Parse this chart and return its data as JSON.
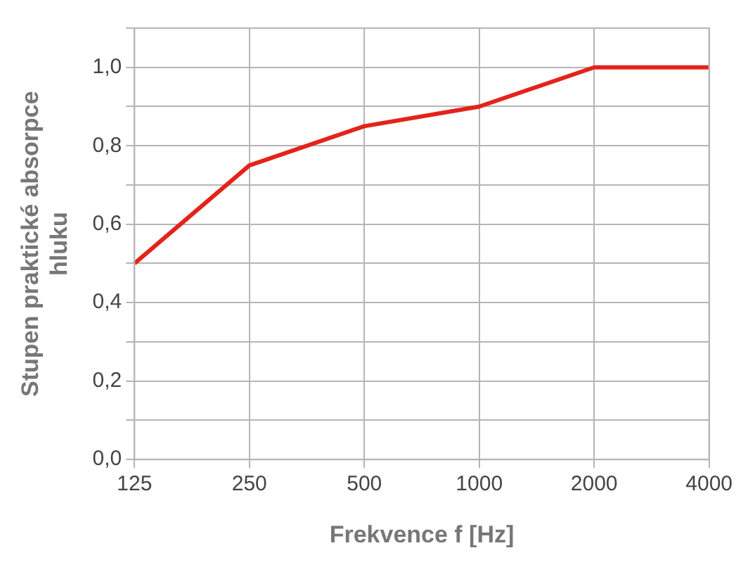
{
  "chart_data": {
    "type": "line",
    "xlabel": "Frekvence f [Hz]",
    "ylabel": "Stupen praktické absorpce hluku",
    "categories": [
      "125",
      "250",
      "500",
      "1000",
      "2000",
      "4000"
    ],
    "series": [
      {
        "color": "#e3241b",
        "values": [
          0.5,
          0.75,
          0.85,
          0.9,
          1.0,
          1.0
        ]
      }
    ],
    "ylim": [
      0,
      1.1
    ],
    "yticks": [
      {
        "value": 0,
        "label": "0,0"
      },
      {
        "value": 0.1,
        "label": null
      },
      {
        "value": 0.2,
        "label": "0,2"
      },
      {
        "value": 0.3,
        "label": null
      },
      {
        "value": 0.4,
        "label": "0,4"
      },
      {
        "value": 0.5,
        "label": null
      },
      {
        "value": 0.6,
        "label": "0,6"
      },
      {
        "value": 0.7,
        "label": null
      },
      {
        "value": 0.8,
        "label": "0,8"
      },
      {
        "value": 0.9,
        "label": null
      },
      {
        "value": 1.0,
        "label": "1,0"
      },
      {
        "value": 1.1,
        "label": null
      }
    ],
    "grid": true,
    "legend": false,
    "marker": "none",
    "line_style": "solid"
  }
}
